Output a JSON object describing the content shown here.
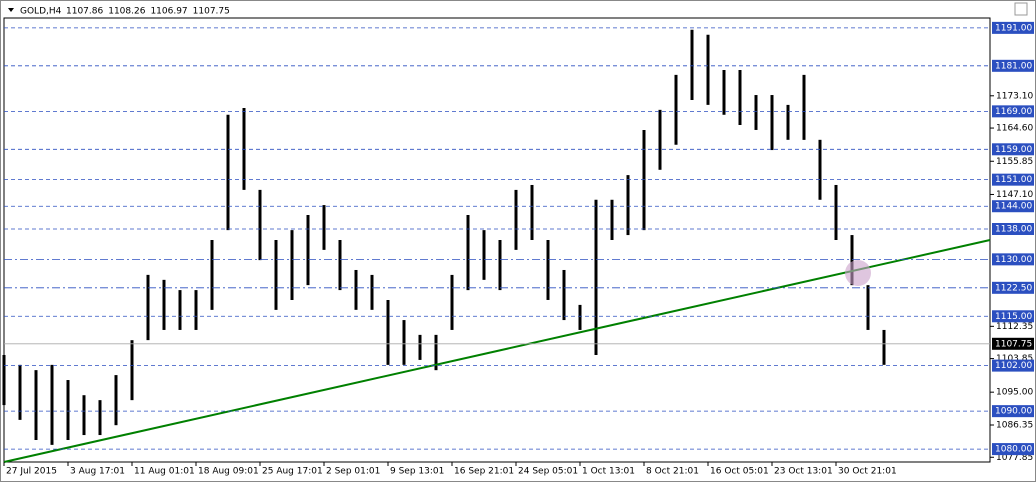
{
  "chart_data": {
    "type": "hilo",
    "title": "GOLD,H4",
    "header_values": [
      1107.86,
      1108.26,
      1106.97,
      1107.75
    ],
    "color": "#000000",
    "xlim": [
      0,
      493
    ],
    "ylim": [
      1076.6,
      1193.6
    ],
    "x": [
      0,
      8,
      16,
      24,
      32,
      40,
      48,
      56,
      64,
      72,
      80,
      88,
      96,
      104,
      112,
      120,
      128,
      136,
      144,
      152,
      160,
      168,
      176,
      184,
      192,
      200,
      208,
      216,
      224,
      232,
      240,
      248,
      256,
      264,
      272,
      280,
      288,
      296,
      304,
      312,
      320,
      328,
      336,
      344,
      352,
      360,
      368,
      376,
      384,
      392,
      400,
      408,
      416,
      424,
      432,
      440
    ],
    "series": [
      {
        "name": "High",
        "values": [
          1104.8,
          1102.2,
          1100.8,
          1102.2,
          1098.2,
          1094.2,
          1092.9,
          1099.5,
          1108.7,
          1125.9,
          1124.6,
          1121.9,
          1121.9,
          1135.1,
          1168.1,
          1169.9,
          1148.3,
          1135.1,
          1137.7,
          1141.7,
          1144.3,
          1135.1,
          1127.2,
          1125.9,
          1119.3,
          1114.0,
          1110.1,
          1110.1,
          1125.9,
          1141.7,
          1137.7,
          1135.1,
          1148.3,
          1149.6,
          1135.1,
          1127.2,
          1118.0,
          1145.7,
          1145.7,
          1152.2,
          1164.1,
          1169.4,
          1178.6,
          1190.5,
          1189.2,
          1179.9,
          1179.9,
          1173.3,
          1173.3,
          1170.7,
          1178.6,
          1161.5,
          1149.6,
          1136.4,
          1123.2,
          1111.4
        ]
      },
      {
        "name": "Low",
        "values": [
          1091.6,
          1087.7,
          1082.4,
          1081.1,
          1082.4,
          1083.7,
          1083.7,
          1086.3,
          1092.9,
          1108.7,
          1111.4,
          1111.4,
          1111.4,
          1116.7,
          1137.7,
          1148.3,
          1129.8,
          1116.7,
          1119.3,
          1123.2,
          1132.5,
          1121.9,
          1116.7,
          1116.7,
          1102.2,
          1102.2,
          1103.5,
          1100.8,
          1111.4,
          1121.9,
          1124.6,
          1121.9,
          1132.5,
          1135.1,
          1119.3,
          1114.0,
          1111.4,
          1104.8,
          1135.1,
          1136.4,
          1137.7,
          1153.6,
          1160.2,
          1172.0,
          1170.7,
          1168.1,
          1165.4,
          1164.1,
          1158.8,
          1161.5,
          1161.5,
          1145.7,
          1135.1,
          1123.2,
          1111.4,
          1102.2
        ]
      }
    ],
    "xticks": [
      {
        "value": 0,
        "label": "27 Jul 2015"
      },
      {
        "value": 32,
        "label": "3 Aug 17:01"
      },
      {
        "value": 64,
        "label": "11 Aug 01:01"
      },
      {
        "value": 96,
        "label": "18 Aug 09:01"
      },
      {
        "value": 128,
        "label": "25 Aug 17:01"
      },
      {
        "value": 160,
        "label": "2 Sep 01:01"
      },
      {
        "value": 192,
        "label": "9 Sep 13:01"
      },
      {
        "value": 224,
        "label": "16 Sep 21:01"
      },
      {
        "value": 256,
        "label": "24 Sep 05:01"
      },
      {
        "value": 288,
        "label": "1 Oct 13:01"
      },
      {
        "value": 320,
        "label": "8 Oct 21:01"
      },
      {
        "value": 352,
        "label": "16 Oct 05:01"
      },
      {
        "value": 384,
        "label": "23 Oct 13:01"
      },
      {
        "value": 416,
        "label": "30 Oct 21:01"
      }
    ],
    "yticks": [
      {
        "value": 1173.1,
        "label": "1173.10"
      },
      {
        "value": 1164.6,
        "label": "1164.60"
      },
      {
        "value": 1155.85,
        "label": "1155.85"
      },
      {
        "value": 1147.1,
        "label": "1147.10"
      },
      {
        "value": 1112.35,
        "label": "1112.35"
      },
      {
        "value": 1103.85,
        "label": "1103.85"
      },
      {
        "value": 1095,
        "label": "1095.00"
      },
      {
        "value": 1086.35,
        "label": "1086.35"
      },
      {
        "value": 1077.85,
        "label": "1077.85"
      }
    ],
    "levels": [
      {
        "value": 1191,
        "label": "1191.00",
        "style": "dash"
      },
      {
        "value": 1181,
        "label": "1181.00",
        "style": "dash"
      },
      {
        "value": 1169,
        "label": "1169.00",
        "style": "dash"
      },
      {
        "value": 1159,
        "label": "1159.00",
        "style": "dash"
      },
      {
        "value": 1151,
        "label": "1151.00",
        "style": "dash"
      },
      {
        "value": 1144,
        "label": "1144.00",
        "style": "dash"
      },
      {
        "value": 1138,
        "label": "1138.00",
        "style": "dash"
      },
      {
        "value": 1130,
        "label": "1130.00",
        "style": "dashdot"
      },
      {
        "value": 1122.5,
        "label": "1122.50",
        "style": "dashdot"
      },
      {
        "value": 1115,
        "label": "1115.00",
        "style": "dash"
      },
      {
        "value": 1102,
        "label": "1102.00",
        "style": "dash"
      },
      {
        "value": 1090,
        "label": "1090.00",
        "style": "dash"
      },
      {
        "value": 1080,
        "label": "1080.00",
        "style": "dash"
      }
    ],
    "level_color": "#2b4fc0",
    "current_price": 1107.75,
    "trendline": {
      "x": [
        0,
        493
      ],
      "y": [
        1076.6,
        1135.1
      ],
      "color": "#008000"
    }
  }
}
